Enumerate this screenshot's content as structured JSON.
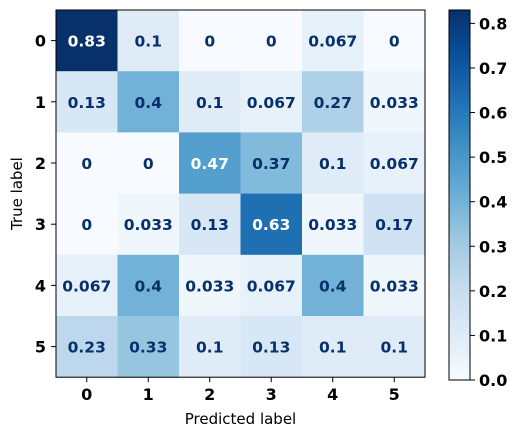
{
  "chart_data": {
    "type": "heatmap",
    "title": "",
    "xlabel": "Predicted label",
    "ylabel": "True label",
    "x_categories": [
      "0",
      "1",
      "2",
      "3",
      "4",
      "5"
    ],
    "y_categories": [
      "0",
      "1",
      "2",
      "3",
      "4",
      "5"
    ],
    "values": [
      [
        0.83,
        0.1,
        0,
        0,
        0.067,
        0
      ],
      [
        0.13,
        0.4,
        0.1,
        0.067,
        0.27,
        0.033
      ],
      [
        0,
        0,
        0.47,
        0.37,
        0.1,
        0.067
      ],
      [
        0,
        0.033,
        0.13,
        0.63,
        0.033,
        0.17
      ],
      [
        0.067,
        0.4,
        0.033,
        0.067,
        0.4,
        0.033
      ],
      [
        0.23,
        0.33,
        0.1,
        0.13,
        0.1,
        0.1
      ]
    ],
    "labels": [
      [
        "0.83",
        "0.1",
        "0",
        "0",
        "0.067",
        "0"
      ],
      [
        "0.13",
        "0.4",
        "0.1",
        "0.067",
        "0.27",
        "0.033"
      ],
      [
        "0",
        "0",
        "0.47",
        "0.37",
        "0.1",
        "0.067"
      ],
      [
        "0",
        "0.033",
        "0.13",
        "0.63",
        "0.033",
        "0.17"
      ],
      [
        "0.067",
        "0.4",
        "0.033",
        "0.067",
        "0.4",
        "0.033"
      ],
      [
        "0.23",
        "0.33",
        "0.1",
        "0.13",
        "0.1",
        "0.1"
      ]
    ],
    "colormap": "Blues",
    "colorbar": {
      "range": [
        0,
        0.83
      ],
      "ticks": [
        0.0,
        0.1,
        0.2,
        0.3,
        0.4,
        0.5,
        0.6,
        0.7,
        0.8
      ],
      "tick_labels": [
        "0.0",
        "0.1",
        "0.2",
        "0.3",
        "0.4",
        "0.5",
        "0.6",
        "0.7",
        "0.8"
      ]
    },
    "text_colors": {
      "light": "#ffffff",
      "dark": "#08306b"
    }
  }
}
